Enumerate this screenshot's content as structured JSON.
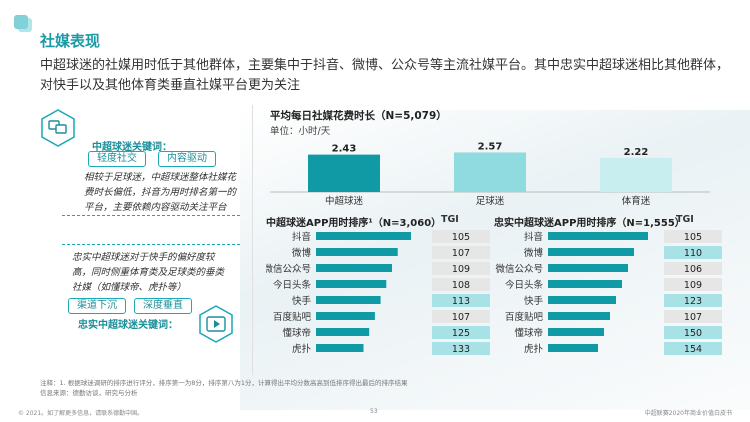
{
  "page": {
    "title": "社媒表现",
    "subtitle": "中超球迷的社媒用时低于其他群体，主要集中于抖音、微博、公众号等主流社媒平台。其中忠实中超球迷相比其他群体，对快手以及其他体育类垂直社媒平台更为关注"
  },
  "left_panel": {
    "kw1_title": "中超球迷关键词：",
    "kw1_tags": [
      "轻度社交",
      "内容驱动"
    ],
    "kw1_desc": "相较于足球迷，中超球迷整体社媒花费时长偏低，抖音为用时排名第一的平台，主要依赖内容驱动关注平台",
    "kw2_desc": "忠实中超球迷对于快手的偏好度较高，同时侧重体育类及足球类的垂类社媒（如懂球帝、虎扑等）",
    "kw2_tags": [
      "渠道下沉",
      "深度垂直"
    ],
    "kw2_title": "忠实中超球迷关键词："
  },
  "top_chart_text": {
    "title": "平均每日社媒花费时长（N=5,079）",
    "unit": "单位：小时/天"
  },
  "rank_left_text": {
    "title": "中超球迷APP用时排序¹（N=3,060）",
    "tgi": "TGI"
  },
  "rank_right_text": {
    "title": "忠实中超球迷APP用时排序（N=1,555）",
    "tgi": "TGI"
  },
  "chart_data": [
    {
      "type": "bar",
      "title": "平均每日社媒花费时长（N=5,079）",
      "ylabel": "单位：小时/天",
      "categories": [
        "中超球迷",
        "足球迷",
        "体育迷"
      ],
      "values": [
        2.43,
        2.57,
        2.22
      ],
      "colors": [
        "#0f9aa5",
        "#8fdbe0",
        "#c9eef0"
      ]
    },
    {
      "type": "bar",
      "orientation": "horizontal",
      "title": "中超球迷APP用时排序¹（N=3,060）",
      "categories": [
        "抖音",
        "微博",
        "微信公众号",
        "今日头条",
        "快手",
        "百度贴吧",
        "懂球帝",
        "虎扑"
      ],
      "values": [
        1.0,
        0.86,
        0.8,
        0.74,
        0.68,
        0.62,
        0.56,
        0.5
      ],
      "tgi": [
        105,
        107,
        109,
        108,
        113,
        107,
        125,
        133
      ],
      "tgi_highlight": [
        false,
        false,
        false,
        false,
        true,
        false,
        true,
        true
      ]
    },
    {
      "type": "bar",
      "orientation": "horizontal",
      "title": "忠实中超球迷APP用时排序（N=1,555）",
      "categories": [
        "抖音",
        "微博",
        "微信公众号",
        "今日头条",
        "快手",
        "百度贴吧",
        "懂球帝",
        "虎扑"
      ],
      "values": [
        1.0,
        0.86,
        0.8,
        0.74,
        0.68,
        0.62,
        0.56,
        0.5
      ],
      "tgi": [
        105,
        110,
        106,
        109,
        123,
        107,
        150,
        154
      ],
      "tgi_highlight": [
        false,
        true,
        false,
        false,
        true,
        false,
        true,
        true
      ]
    }
  ],
  "colors": {
    "accent": "#1a9aa6",
    "bar_dark": "#0f9aa5",
    "tgi_plain": "#e6e6e6",
    "tgi_highlight": "#a9e2e6"
  },
  "notes": {
    "line1": "注释：1. 根据球迷调研的排序进行评分，排序第一为8分，排序第八为1分，计算得出平均分数高高到低排序得出最后的排序结果",
    "line2": "信息来源：德勤访谈，研究与分析"
  },
  "footer": {
    "left": "© 2021。如了解更多信息，请联系德勤中国。",
    "center": "53",
    "right": "中超联赛2020年商业价值白皮书"
  }
}
